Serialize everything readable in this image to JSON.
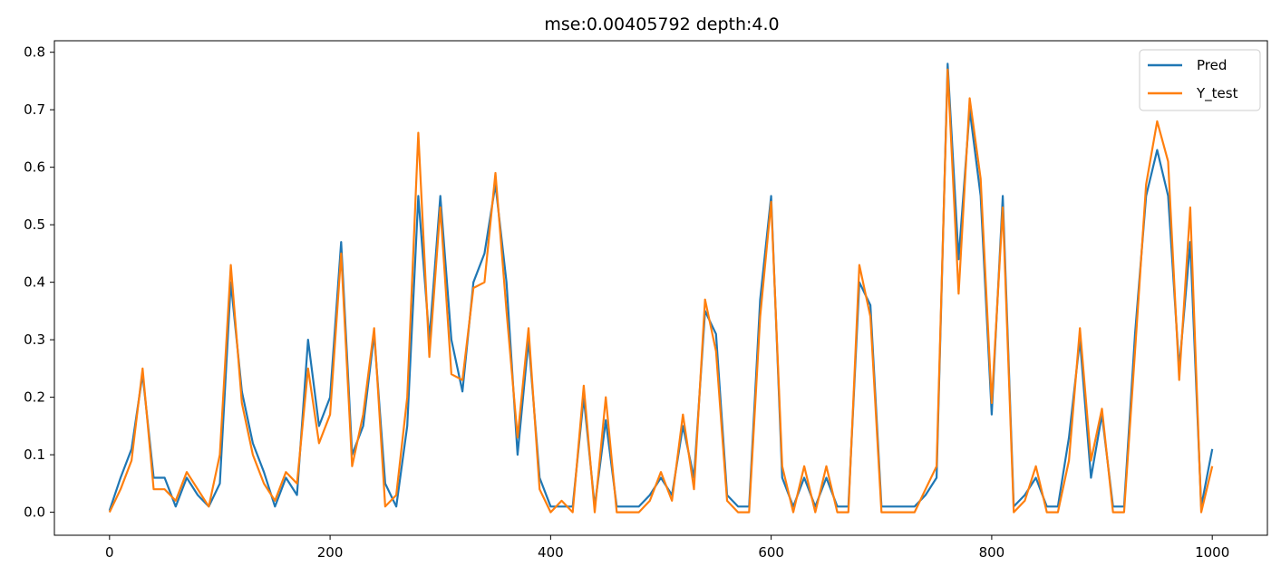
{
  "chart_data": {
    "type": "line",
    "title": "mse:0.00405792   depth:4.0",
    "xlabel": "",
    "ylabel": "",
    "xlim": [
      -50,
      1050
    ],
    "ylim": [
      -0.04,
      0.82
    ],
    "xticks": [
      0,
      200,
      400,
      600,
      800,
      1000
    ],
    "yticks": [
      0.0,
      0.1,
      0.2,
      0.3,
      0.4,
      0.5,
      0.6,
      0.7,
      0.8
    ],
    "xtick_labels": [
      "0",
      "200",
      "400",
      "600",
      "800",
      "1000"
    ],
    "ytick_labels": [
      "0.0",
      "0.1",
      "0.2",
      "0.3",
      "0.4",
      "0.5",
      "0.6",
      "0.7",
      "0.8"
    ],
    "grid": false,
    "legend": "top-right",
    "x": [
      0,
      10,
      20,
      30,
      40,
      50,
      60,
      70,
      80,
      90,
      100,
      110,
      120,
      130,
      140,
      150,
      160,
      170,
      180,
      190,
      200,
      210,
      220,
      230,
      240,
      250,
      260,
      270,
      280,
      290,
      300,
      310,
      320,
      330,
      340,
      350,
      360,
      370,
      380,
      390,
      400,
      410,
      420,
      430,
      440,
      450,
      460,
      470,
      480,
      490,
      500,
      510,
      520,
      530,
      540,
      550,
      560,
      570,
      580,
      590,
      600,
      610,
      620,
      630,
      640,
      650,
      660,
      670,
      680,
      690,
      700,
      710,
      720,
      730,
      740,
      750,
      760,
      770,
      780,
      790,
      800,
      810,
      820,
      830,
      840,
      850,
      860,
      870,
      880,
      890,
      900,
      910,
      920,
      930,
      940,
      950,
      960,
      970,
      980,
      990,
      1000
    ],
    "series": [
      {
        "name": "Pred",
        "color": "#1f77b4",
        "values": [
          0.003,
          0.06,
          0.11,
          0.24,
          0.06,
          0.06,
          0.01,
          0.06,
          0.03,
          0.01,
          0.05,
          0.4,
          0.21,
          0.12,
          0.07,
          0.01,
          0.06,
          0.03,
          0.3,
          0.15,
          0.2,
          0.47,
          0.1,
          0.15,
          0.31,
          0.05,
          0.01,
          0.15,
          0.55,
          0.3,
          0.55,
          0.3,
          0.21,
          0.4,
          0.45,
          0.57,
          0.4,
          0.1,
          0.3,
          0.06,
          0.01,
          0.01,
          0.01,
          0.2,
          0.01,
          0.16,
          0.01,
          0.01,
          0.01,
          0.03,
          0.06,
          0.03,
          0.15,
          0.06,
          0.35,
          0.31,
          0.03,
          0.01,
          0.01,
          0.37,
          0.55,
          0.06,
          0.01,
          0.06,
          0.01,
          0.06,
          0.01,
          0.01,
          0.4,
          0.36,
          0.01,
          0.01,
          0.01,
          0.01,
          0.03,
          0.06,
          0.78,
          0.44,
          0.7,
          0.55,
          0.17,
          0.55,
          0.01,
          0.03,
          0.06,
          0.01,
          0.01,
          0.13,
          0.3,
          0.06,
          0.17,
          0.01,
          0.01,
          0.31,
          0.55,
          0.63,
          0.55,
          0.25,
          0.47,
          0.01,
          0.11
        ]
      },
      {
        "name": "Y_test",
        "color": "#ff7f0e",
        "values": [
          0.0,
          0.04,
          0.09,
          0.25,
          0.04,
          0.04,
          0.02,
          0.07,
          0.04,
          0.01,
          0.1,
          0.43,
          0.19,
          0.1,
          0.05,
          0.02,
          0.07,
          0.05,
          0.25,
          0.12,
          0.17,
          0.45,
          0.08,
          0.17,
          0.32,
          0.01,
          0.03,
          0.2,
          0.66,
          0.27,
          0.53,
          0.24,
          0.23,
          0.39,
          0.4,
          0.59,
          0.35,
          0.13,
          0.32,
          0.04,
          0.0,
          0.02,
          0.0,
          0.22,
          0.0,
          0.2,
          0.0,
          0.0,
          0.0,
          0.02,
          0.07,
          0.02,
          0.17,
          0.04,
          0.37,
          0.28,
          0.02,
          0.0,
          0.0,
          0.34,
          0.54,
          0.08,
          0.0,
          0.08,
          0.0,
          0.08,
          0.0,
          0.0,
          0.43,
          0.34,
          0.0,
          0.0,
          0.0,
          0.0,
          0.04,
          0.08,
          0.77,
          0.38,
          0.72,
          0.58,
          0.19,
          0.53,
          0.0,
          0.02,
          0.08,
          0.0,
          0.0,
          0.09,
          0.32,
          0.09,
          0.18,
          0.0,
          0.0,
          0.28,
          0.57,
          0.68,
          0.61,
          0.23,
          0.53,
          0.0,
          0.08
        ]
      }
    ]
  }
}
